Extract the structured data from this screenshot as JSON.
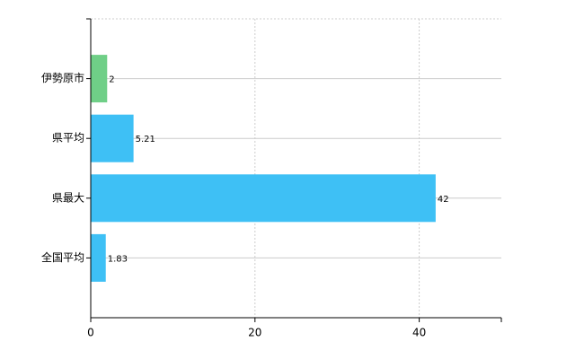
{
  "chart_data": {
    "type": "hbar",
    "categories": [
      "伊勢原市",
      "県平均",
      "県最大",
      "全国平均"
    ],
    "values": [
      2,
      5.21,
      42,
      1.83
    ],
    "colors": [
      "#6fcf87",
      "#3ec0f5",
      "#3ec0f5",
      "#3ec0f5"
    ],
    "xlim": [
      0,
      50
    ],
    "xticks": [
      0,
      20,
      40
    ],
    "grid": true
  }
}
